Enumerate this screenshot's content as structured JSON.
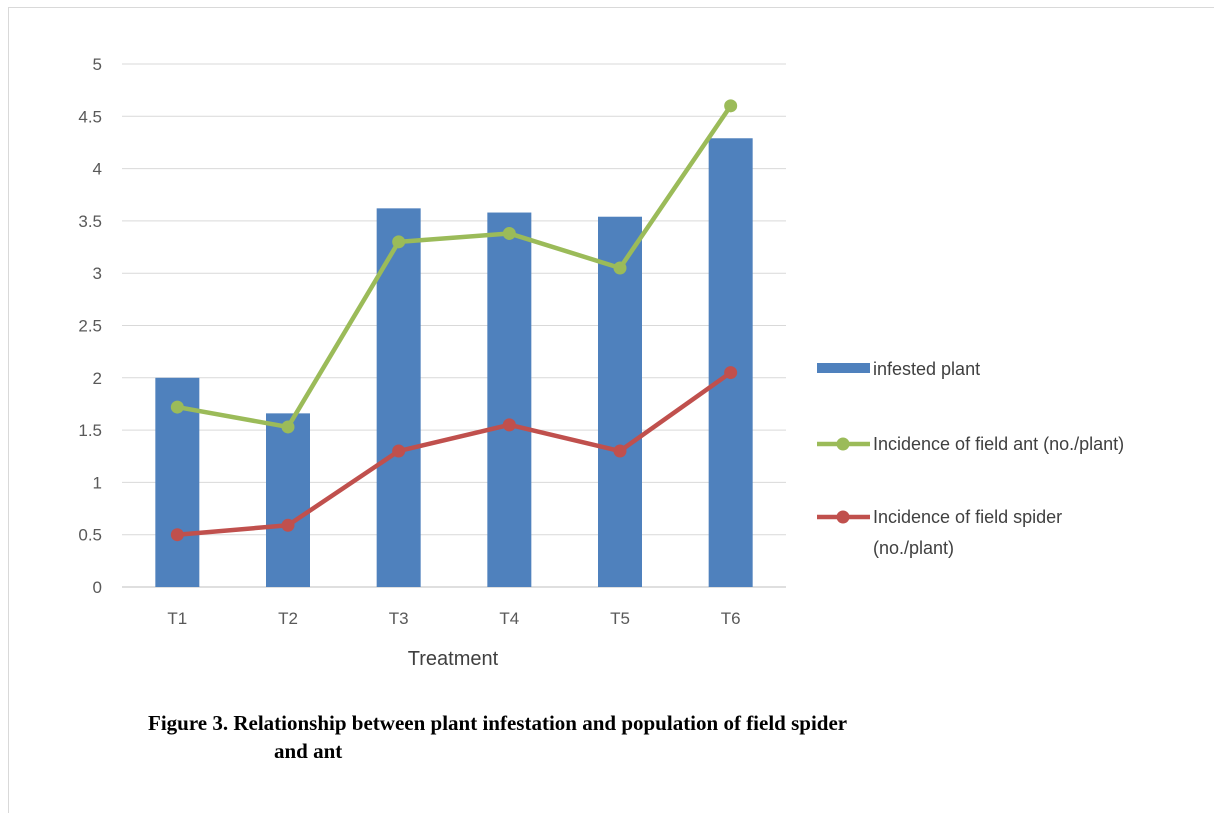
{
  "chart_data": {
    "type": "bar",
    "categories": [
      "T1",
      "T2",
      "T3",
      "T4",
      "T5",
      "T6"
    ],
    "series": [
      {
        "name": "infested plant",
        "type": "bar",
        "color": "#4F81BD",
        "values": [
          2.0,
          1.66,
          3.62,
          3.58,
          3.54,
          4.29
        ]
      },
      {
        "name": "Incidence of field ant (no./plant)",
        "type": "line",
        "color": "#9BBB59",
        "values": [
          1.72,
          1.53,
          3.3,
          3.38,
          3.05,
          4.6
        ]
      },
      {
        "name": "Incidence of field spider (no./plant)",
        "type": "line",
        "color": "#C0504D",
        "values": [
          0.5,
          0.59,
          1.3,
          1.55,
          1.3,
          2.05
        ]
      }
    ],
    "xlabel": "Treatment",
    "ylabel": "",
    "ylim": [
      0,
      5
    ],
    "yticks": [
      "0",
      "0.5",
      "1",
      "1.5",
      "2",
      "2.5",
      "3",
      "3.5",
      "4",
      "4.5",
      "5"
    ],
    "grid": true,
    "legend_position": "right",
    "legend": {
      "bar_label": "infested plant",
      "ant_label": "Incidence of field ant (no./plant)",
      "spider_label_line1": "Incidence of field spider",
      "spider_label_line2": "(no./plant)"
    }
  },
  "caption": {
    "line1": "Figure  3. Relationship between plant infestation and population of  field spider",
    "line2": "and ant"
  }
}
